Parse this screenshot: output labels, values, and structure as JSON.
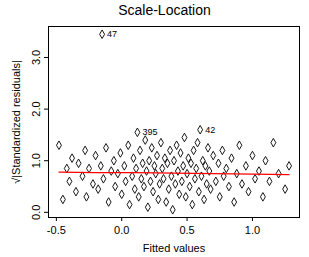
{
  "chart_data": {
    "type": "scatter",
    "title": "Scale-Location",
    "x_label": "Fitted values",
    "y_label": "√|Standardized residuals|",
    "marker": "diamond",
    "color": "black",
    "x": [
      -0.48,
      -0.45,
      -0.42,
      -0.4,
      -0.38,
      -0.35,
      -0.33,
      -0.3,
      -0.28,
      -0.27,
      -0.25,
      -0.22,
      -0.2,
      -0.18,
      -0.16,
      -0.15,
      -0.14,
      -0.12,
      -0.1,
      -0.08,
      -0.06,
      -0.05,
      -0.03,
      -0.01,
      0.0,
      0.02,
      0.03,
      0.05,
      0.06,
      0.08,
      0.09,
      0.1,
      0.11,
      0.12,
      0.13,
      0.14,
      0.15,
      0.16,
      0.17,
      0.18,
      0.19,
      0.2,
      0.21,
      0.22,
      0.23,
      0.24,
      0.25,
      0.26,
      0.27,
      0.28,
      0.29,
      0.3,
      0.31,
      0.32,
      0.33,
      0.34,
      0.35,
      0.36,
      0.37,
      0.38,
      0.39,
      0.4,
      0.41,
      0.42,
      0.43,
      0.44,
      0.45,
      0.46,
      0.47,
      0.48,
      0.49,
      0.5,
      0.51,
      0.52,
      0.53,
      0.54,
      0.55,
      0.56,
      0.57,
      0.58,
      0.59,
      0.6,
      0.61,
      0.62,
      0.63,
      0.64,
      0.65,
      0.66,
      0.67,
      0.68,
      0.7,
      0.72,
      0.74,
      0.75,
      0.77,
      0.78,
      0.8,
      0.82,
      0.84,
      0.86,
      0.88,
      0.9,
      0.92,
      0.95,
      0.97,
      1.0,
      1.02,
      1.05,
      1.08,
      1.1,
      1.13,
      1.16,
      1.2,
      1.25,
      1.28
    ],
    "y": [
      1.3,
      0.25,
      0.85,
      0.6,
      1.05,
      0.4,
      0.95,
      0.7,
      1.2,
      0.3,
      0.85,
      0.55,
      1.1,
      0.45,
      0.9,
      3.45,
      0.65,
      1.25,
      0.2,
      0.8,
      1.0,
      0.5,
      0.75,
      1.15,
      0.35,
      0.9,
      0.6,
      1.3,
      0.15,
      0.7,
      1.05,
      0.45,
      0.85,
      1.55,
      0.3,
      1.2,
      0.65,
      0.95,
      0.5,
      1.4,
      0.8,
      0.1,
      1.0,
      0.6,
      1.25,
      0.4,
      0.9,
      0.75,
      1.1,
      0.25,
      0.55,
      1.35,
      0.85,
      0.65,
      1.05,
      0.2,
      0.95,
      0.45,
      1.2,
      0.7,
      0.05,
      1.0,
      0.55,
      1.3,
      0.8,
      0.35,
      1.15,
      0.6,
      0.9,
      1.45,
      0.3,
      0.75,
      1.05,
      0.5,
      0.95,
      0.15,
      1.2,
      0.65,
      0.85,
      1.35,
      0.4,
      1.6,
      0.7,
      1.0,
      0.25,
      0.9,
      0.55,
      1.25,
      0.8,
      0.45,
      1.1,
      0.6,
      0.95,
      0.3,
      1.2,
      0.7,
      0.85,
      0.5,
      1.05,
      0.2,
      0.75,
      1.3,
      0.55,
      0.9,
      0.4,
      1.1,
      0.65,
      0.8,
      0.3,
      1.0,
      0.6,
      1.35,
      0.75,
      0.45,
      0.9
    ],
    "smooth": {
      "type": "line",
      "color": "red",
      "x": [
        -0.48,
        -0.2,
        0.1,
        0.4,
        0.7,
        1.0,
        1.28
      ],
      "y": [
        0.78,
        0.77,
        0.77,
        0.76,
        0.75,
        0.74,
        0.73
      ]
    },
    "point_labels": [
      {
        "label": "47",
        "x": -0.15,
        "y": 3.45
      },
      {
        "label": "395",
        "x": 0.12,
        "y": 1.55
      },
      {
        "label": "42",
        "x": 0.6,
        "y": 1.6
      }
    ],
    "xlim": [
      -0.56,
      1.36
    ],
    "ylim": [
      -0.1,
      3.6
    ],
    "xticks": [
      {
        "value": -0.5,
        "label": "-0.5"
      },
      {
        "value": 0,
        "label": "0.0"
      },
      {
        "value": 0.5,
        "label": "0.5"
      },
      {
        "value": 1,
        "label": "1.0"
      }
    ],
    "yticks": [
      {
        "value": 0,
        "label": "0.0"
      },
      {
        "value": 1,
        "label": "1.0"
      },
      {
        "value": 2,
        "label": "2.0"
      },
      {
        "value": 3,
        "label": "3.0"
      }
    ],
    "grid": false
  }
}
